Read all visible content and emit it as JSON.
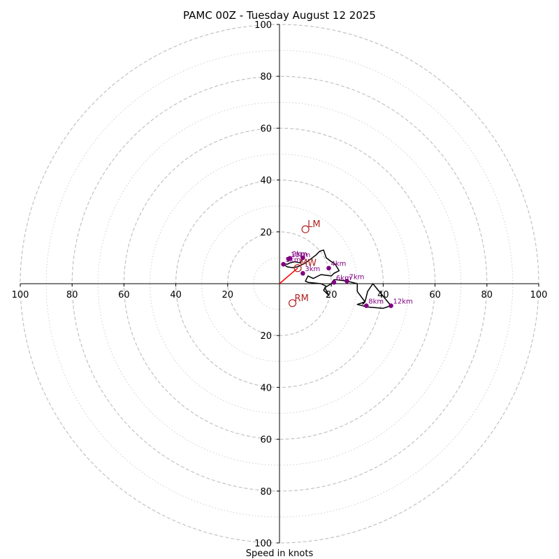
{
  "chart_data": {
    "type": "hodograph",
    "title": "PAMC 00Z - Tuesday August 12 2025",
    "xlabel": "Speed in knots",
    "axis_range_knots": [
      -100,
      100
    ],
    "ring_major_knots": [
      20,
      40,
      60,
      80,
      100
    ],
    "ring_minor_knots": [
      10,
      30,
      50,
      70,
      90
    ],
    "tick_labels_x": [
      "100",
      "80",
      "60",
      "40",
      "20",
      "20",
      "40",
      "60",
      "80",
      "100"
    ],
    "tick_values_x": [
      -100,
      -80,
      -60,
      -40,
      -20,
      20,
      40,
      60,
      80,
      100
    ],
    "tick_labels_y": [
      "100",
      "80",
      "60",
      "40",
      "20",
      "20",
      "40",
      "60",
      "80",
      "100"
    ],
    "tick_values_y": [
      100,
      80,
      60,
      40,
      20,
      -20,
      -40,
      -60,
      -80,
      -100
    ],
    "hodograph_line": {
      "color": "#000000",
      "points": [
        [
          9,
          10
        ],
        [
          8,
          8
        ],
        [
          6,
          8.5
        ],
        [
          4,
          8
        ],
        [
          3,
          7.5
        ],
        [
          1.5,
          7.8
        ],
        [
          2,
          7.2
        ],
        [
          3,
          6.5
        ],
        [
          5,
          6.2
        ],
        [
          7,
          6.5
        ],
        [
          8,
          7
        ],
        [
          10,
          8
        ],
        [
          12,
          9.5
        ],
        [
          14,
          11
        ],
        [
          15.5,
          12.5
        ],
        [
          17,
          13
        ],
        [
          18,
          10
        ],
        [
          20,
          8.5
        ],
        [
          21.5,
          7.5
        ],
        [
          23,
          5
        ],
        [
          21,
          4
        ],
        [
          20,
          3
        ],
        [
          16,
          3.5
        ],
        [
          13,
          2
        ],
        [
          11,
          3
        ],
        [
          10,
          1
        ],
        [
          11,
          0.5
        ],
        [
          16,
          0
        ],
        [
          18,
          -1
        ],
        [
          17,
          -2.5
        ],
        [
          19,
          -4.5
        ],
        [
          18,
          -2.5
        ],
        [
          17.5,
          -1.5
        ],
        [
          20,
          0
        ],
        [
          21,
          1.5
        ],
        [
          22,
          1.5
        ],
        [
          26,
          1
        ],
        [
          30,
          0
        ],
        [
          30,
          -3
        ],
        [
          33,
          -7
        ],
        [
          30,
          -8
        ],
        [
          34,
          -9
        ],
        [
          40,
          -9.5
        ],
        [
          43,
          -8.5
        ],
        [
          36,
          0
        ],
        [
          34,
          -3
        ],
        [
          33,
          -7
        ],
        [
          32,
          -8
        ]
      ]
    },
    "height_markers": [
      {
        "label": "",
        "u": 9,
        "v": 10
      },
      {
        "label": "2km",
        "u": 4,
        "v": 9.8
      },
      {
        "label": "5km",
        "u": 1.5,
        "v": 7.5
      },
      {
        "label": "3km",
        "u": 9,
        "v": 4
      },
      {
        "label": "4km",
        "u": 19,
        "v": 6
      },
      {
        "label": "6km",
        "u": 21,
        "v": 0.5
      },
      {
        "label": "7km",
        "u": 26,
        "v": 1
      },
      {
        "label": "8km",
        "u": 33.5,
        "v": -8.5
      },
      {
        "label": "12km",
        "u": 43,
        "v": -8.5
      },
      {
        "label": "10km",
        "u": 3.5,
        "v": 9.5
      }
    ],
    "storm_motion": [
      {
        "label": "LM",
        "u": 10,
        "v": 21
      },
      {
        "label": "MW",
        "u": 7,
        "v": 6
      },
      {
        "label": "RM",
        "u": 5,
        "v": -7.5
      }
    ],
    "mean_wind_vector": {
      "u": 7,
      "v": 6,
      "color": "#ff0000"
    },
    "colors": {
      "hodograph": "#000000",
      "markers": "#800080",
      "storm_motion": "#b22222",
      "grid": "#bdbdbd"
    }
  }
}
